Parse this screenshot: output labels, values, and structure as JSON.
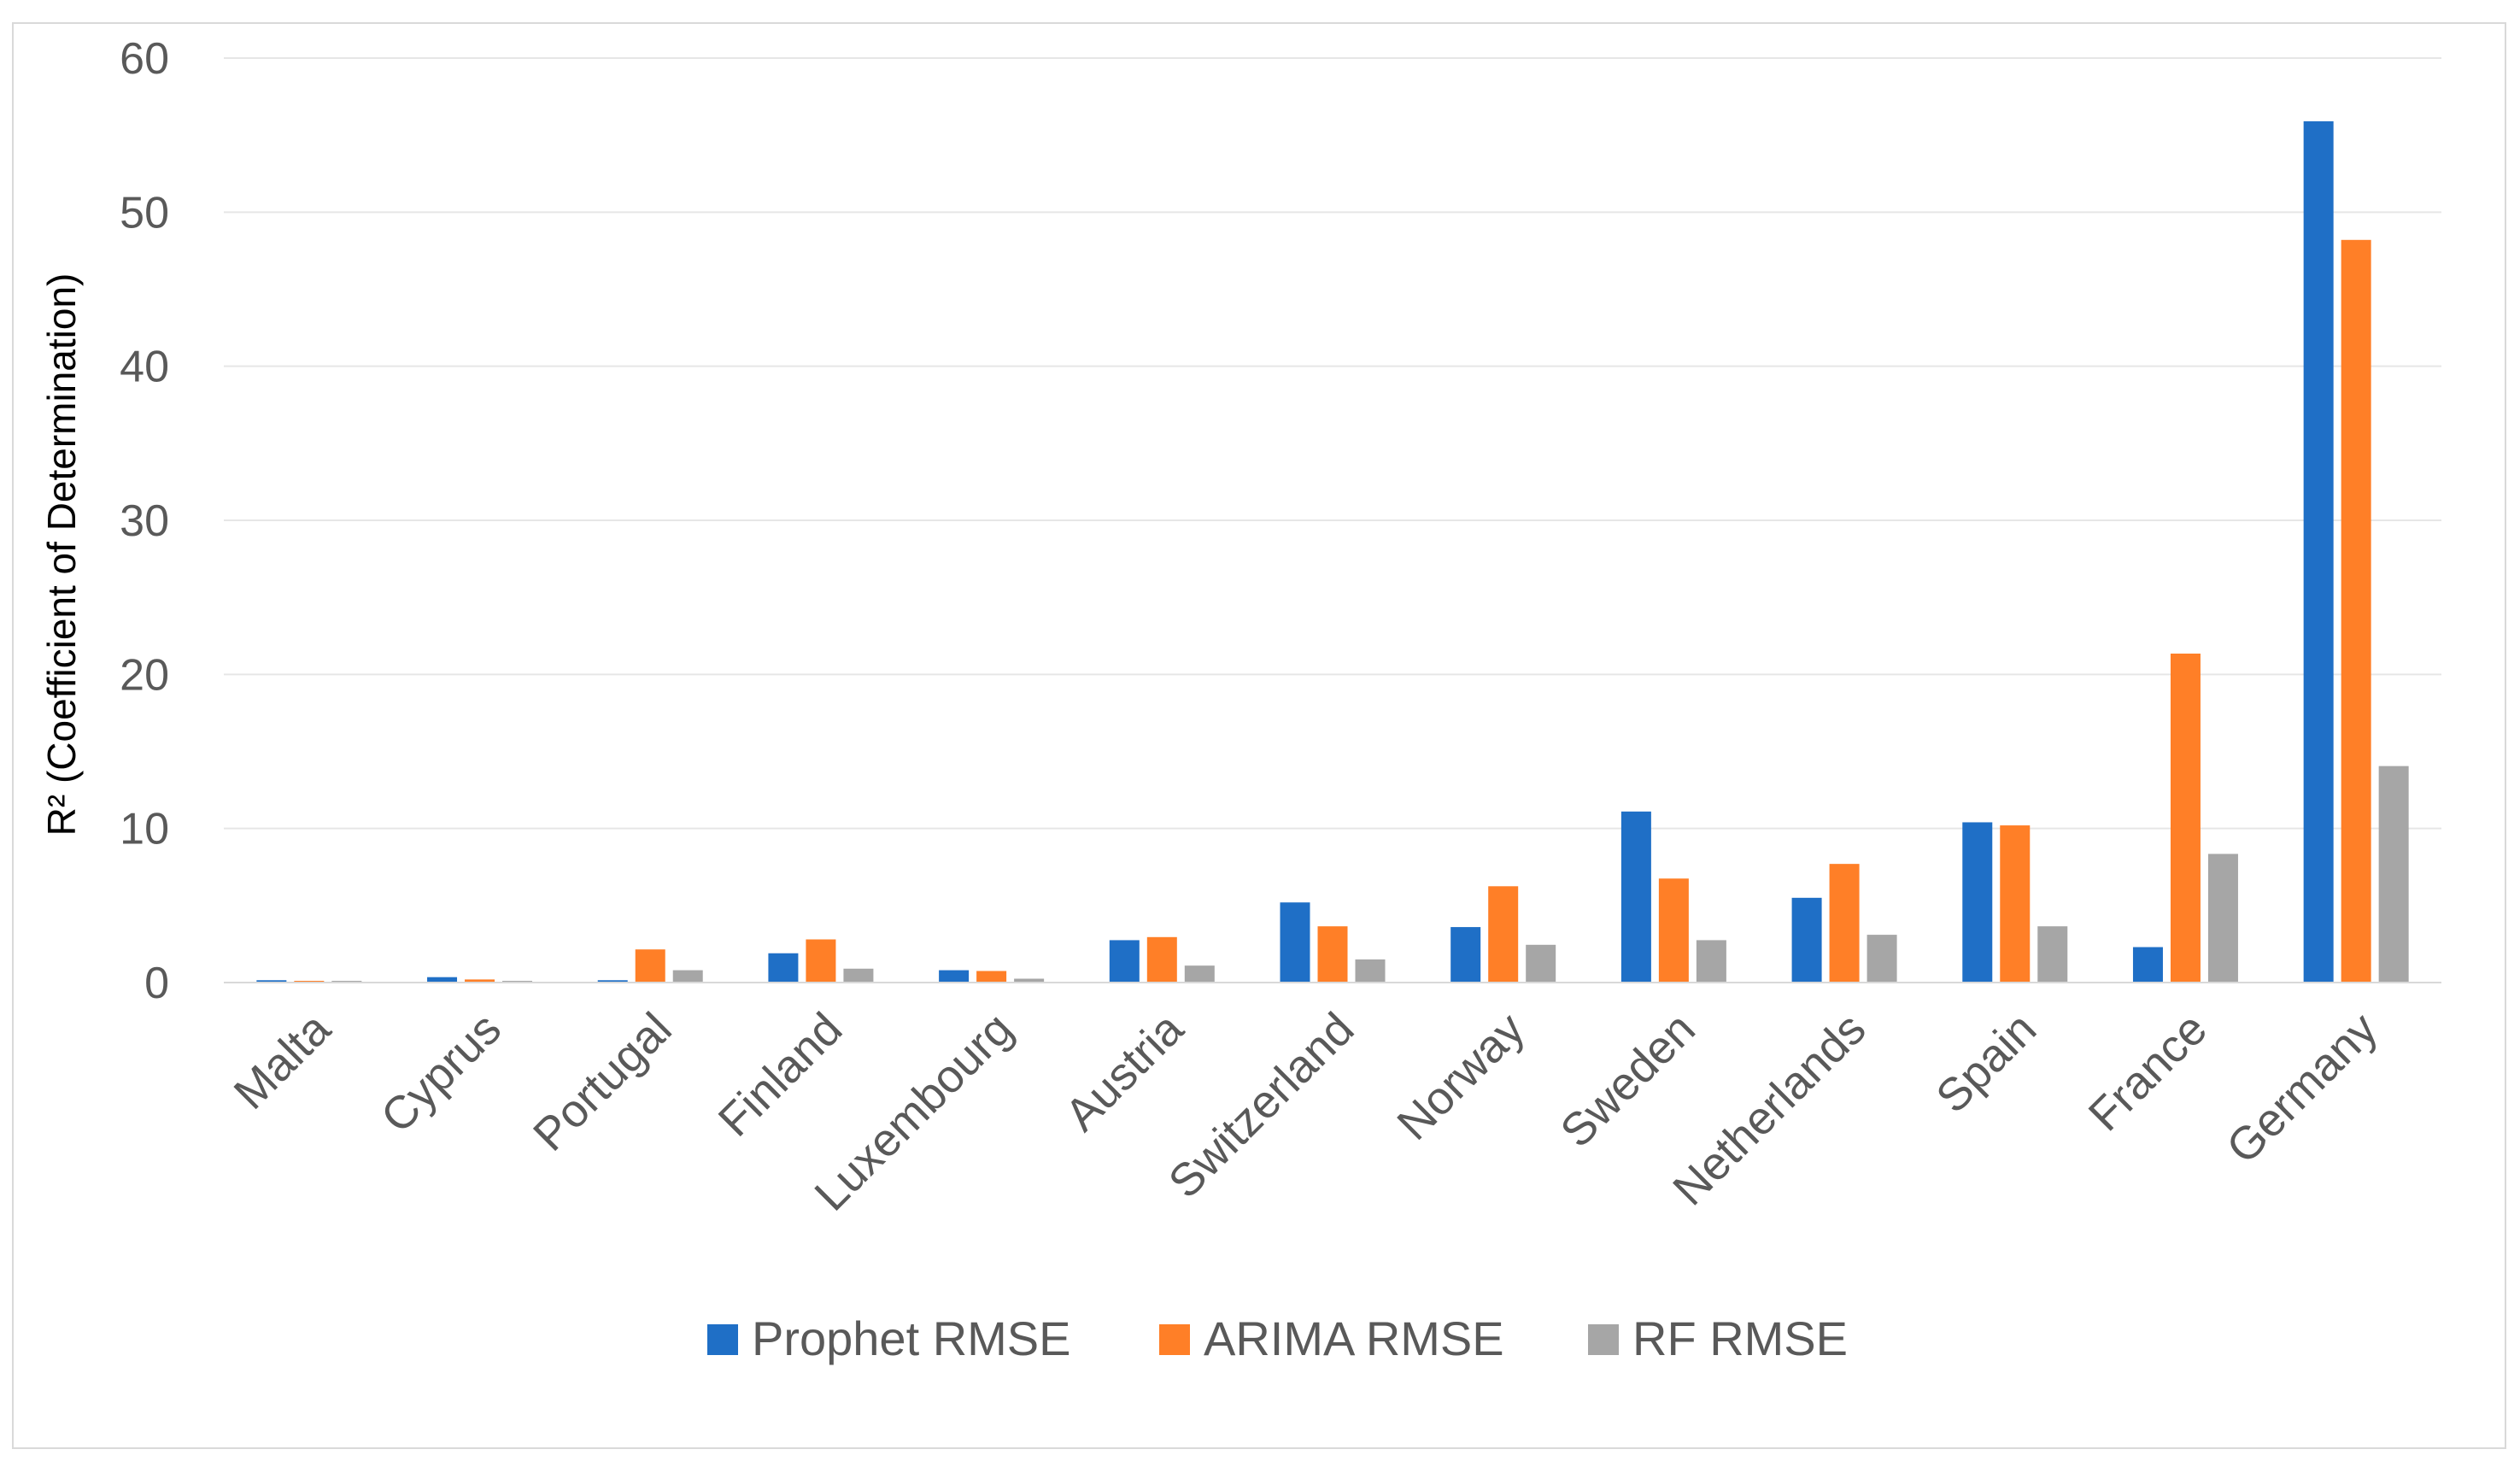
{
  "chart_data": {
    "type": "bar",
    "title": "",
    "xlabel": "",
    "ylabel": "R² (Coefficient of Determination)",
    "ylim": [
      0,
      60
    ],
    "yticks": [
      0,
      10,
      20,
      30,
      40,
      50,
      60
    ],
    "grid": true,
    "legend_position": "bottom",
    "categories": [
      "Malta",
      "Cyprus",
      "Portugal",
      "Finland",
      "Luxembourg",
      "Austria",
      "Switzerland",
      "Norway",
      "Sweden",
      "Netherlands",
      "Spain",
      "France",
      "Germany"
    ],
    "series": [
      {
        "name": "Prophet RMSE",
        "color": "#1f6fc6",
        "values": [
          0.15,
          0.35,
          0.15,
          1.9,
          0.8,
          2.75,
          5.2,
          3.6,
          11.1,
          5.5,
          10.4,
          2.3,
          55.9
        ]
      },
      {
        "name": "ARIMA RMSE",
        "color": "#ff7f27",
        "values": [
          0.1,
          0.2,
          2.15,
          2.8,
          0.75,
          2.95,
          3.65,
          6.25,
          6.75,
          7.7,
          10.2,
          21.35,
          48.2
        ]
      },
      {
        "name": "RF RMSE",
        "color": "#a6a6a6",
        "values": [
          0.05,
          0.1,
          0.8,
          0.9,
          0.25,
          1.1,
          1.5,
          2.45,
          2.75,
          3.1,
          3.65,
          8.35,
          14.05
        ]
      }
    ]
  }
}
